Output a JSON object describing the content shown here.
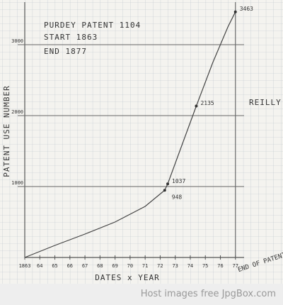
{
  "chart_data": {
    "type": "line",
    "annotations": [
      "PURDEY PATENT 1104",
      "START 1863",
      "END 1877",
      "REILLY PATENT USE #'S",
      "END OF PATENT"
    ],
    "x_label": "DATES x YEAR",
    "y_label": "PATENT USE NUMBER",
    "xlim": [
      1863,
      1878
    ],
    "ylim": [
      0,
      3600
    ],
    "xticks": [
      {
        "value": 1863,
        "label": "1863"
      },
      {
        "value": 1864,
        "label": "64"
      },
      {
        "value": 1865,
        "label": "65"
      },
      {
        "value": 1866,
        "label": "66"
      },
      {
        "value": 1867,
        "label": "67"
      },
      {
        "value": 1868,
        "label": "68"
      },
      {
        "value": 1869,
        "label": "69"
      },
      {
        "value": 1870,
        "label": "70"
      },
      {
        "value": 1871,
        "label": "71"
      },
      {
        "value": 1872,
        "label": "72"
      },
      {
        "value": 1873,
        "label": "73"
      },
      {
        "value": 1874,
        "label": "74"
      },
      {
        "value": 1875,
        "label": "75"
      },
      {
        "value": 1876,
        "label": "76"
      },
      {
        "value": 1877,
        "label": "77"
      }
    ],
    "yticks": [
      1000,
      2000,
      3000
    ],
    "series": [
      {
        "name": "Reilly patent use",
        "color": "#444444",
        "x": [
          1863,
          1865,
          1867,
          1869,
          1871,
          1872.3,
          1872.5,
          1873.3,
          1874.4,
          1875.5,
          1876.5,
          1877
        ],
        "values": [
          0,
          170,
          330,
          500,
          720,
          948,
          1037,
          1500,
          2135,
          2750,
          3250,
          3463
        ]
      }
    ],
    "points": {
      "x": [
        1872.3,
        1872.5,
        1874.4,
        1877
      ],
      "values": [
        948,
        1037,
        2135,
        3463
      ]
    }
  },
  "footer": "Host images free JpgBox.com"
}
